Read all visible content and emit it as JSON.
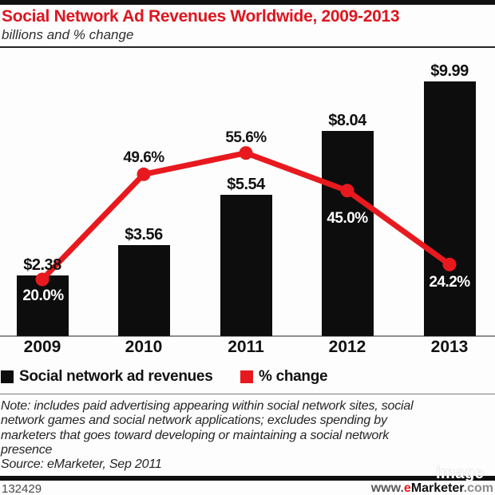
{
  "header": {
    "title": "Social Network Ad Revenues Worldwide, 2009-2013",
    "subtitle": "billions and % change"
  },
  "chart_data": {
    "type": "bar+line combo",
    "categories": [
      "2009",
      "2010",
      "2011",
      "2012",
      "2013"
    ],
    "series": [
      {
        "name": "Social network ad revenues",
        "type": "bar",
        "unit": "US$ billions",
        "values": [
          2.38,
          3.56,
          5.54,
          8.04,
          9.99
        ],
        "labels": [
          "$2.38",
          "$3.56",
          "$5.54",
          "$8.04",
          "$9.99"
        ],
        "color": "#0d0d0d"
      },
      {
        "name": "% change",
        "type": "line",
        "unit": "%",
        "values": [
          20.0,
          49.6,
          55.6,
          45.0,
          24.2
        ],
        "labels": [
          "20.0%",
          "49.6%",
          "55.6%",
          "45.0%",
          "24.2%"
        ],
        "color": "#e8191e",
        "label_colors": [
          "#ffffff",
          "#141414",
          "#141414",
          "#ffffff",
          "#ffffff"
        ],
        "label_sides": [
          "below",
          "above",
          "above",
          "below",
          "below"
        ]
      }
    ],
    "title": "Social Network Ad Revenues Worldwide, 2009-2013",
    "subtitle": "billions and % change",
    "xlabel": "",
    "ylabel": "",
    "grid": false,
    "legend_position": "bottom"
  },
  "legend": {
    "items": [
      {
        "label": "Social network ad revenues",
        "color": "#0d0d0d"
      },
      {
        "label": "% change",
        "color": "#e8191e"
      }
    ]
  },
  "note": "Note: includes paid advertising appearing within social network sites, social\nnetwork games and social network applications; excludes spending by\nmarketers that goes toward developing or maintaining a social network\npresence",
  "source": "Source: eMarketer, Sep 2011",
  "footer": {
    "chart_id": "132429",
    "site_prefix": "www.",
    "site_e": "e",
    "site_name": "Marketer",
    "site_suffix": ".com"
  },
  "watermark": "image",
  "colors": {
    "title_red": "#dd1620",
    "line_red": "#e8191e",
    "bar_black": "#0d0d0d",
    "axis_gray": "#8f8f8f"
  }
}
